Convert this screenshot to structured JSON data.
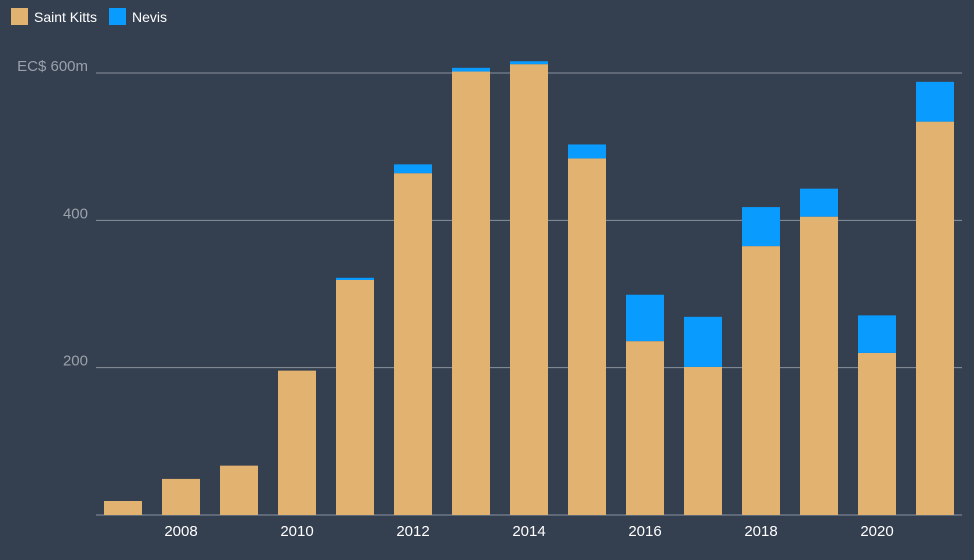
{
  "colors": {
    "background": "#343f4f",
    "gridline": "#8a929c",
    "axis_text_y": "#9aa1aa",
    "axis_text_x": "#ffffff"
  },
  "legend": {
    "items": [
      {
        "label": "Saint Kitts",
        "color": "#e2b271"
      },
      {
        "label": "Nevis",
        "color": "#0a9bff"
      }
    ]
  },
  "chart_data": {
    "type": "bar",
    "stacked": true,
    "categories": [
      "2007",
      "2008",
      "2009",
      "2010",
      "2011",
      "2012",
      "2013",
      "2014",
      "2015",
      "2016",
      "2017",
      "2018",
      "2019",
      "2020",
      "2021"
    ],
    "series": [
      {
        "name": "Saint Kitts",
        "color": "#e2b271",
        "values": [
          19,
          49,
          67,
          196,
          319,
          464,
          602,
          612,
          484,
          236,
          201,
          365,
          405,
          220,
          534
        ]
      },
      {
        "name": "Nevis",
        "color": "#0a9bff",
        "values": [
          0,
          0,
          0,
          0,
          3,
          12,
          5,
          4,
          19,
          63,
          68,
          53,
          38,
          51,
          54
        ]
      }
    ],
    "x_tick_labels": [
      "2008",
      "2010",
      "2012",
      "2014",
      "2016",
      "2018",
      "2020"
    ],
    "y_ticks": [
      200,
      400,
      600
    ],
    "y_tick_labels": [
      "200",
      "400",
      "EC$ 600m"
    ],
    "ylim": [
      0,
      600
    ],
    "grid": true,
    "legend_position": "top-left"
  }
}
